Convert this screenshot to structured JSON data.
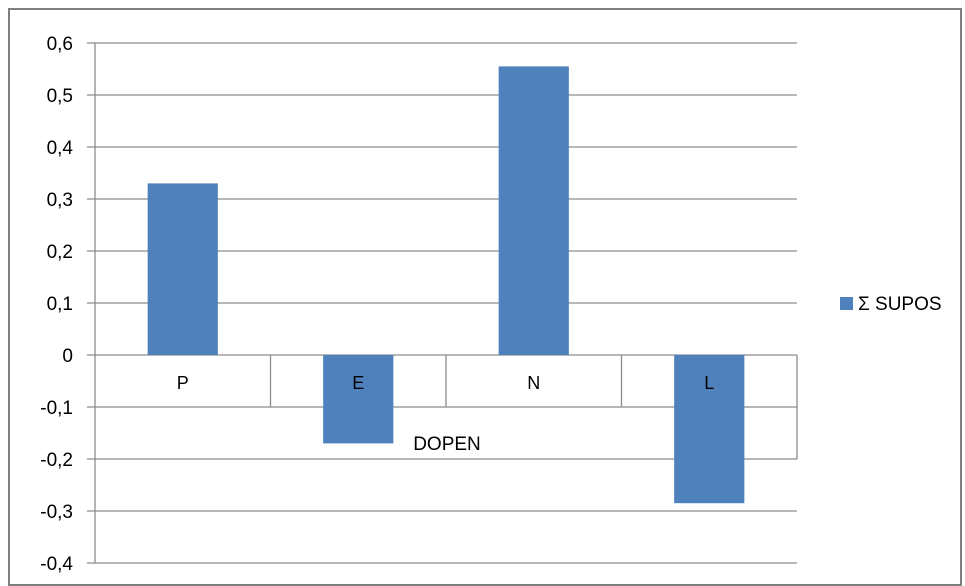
{
  "chart_data": {
    "type": "bar",
    "categories": [
      "P",
      "E",
      "N",
      "L"
    ],
    "series": [
      {
        "name": "Σ SUPOS",
        "values": [
          0.33,
          -0.17,
          0.555,
          -0.285
        ]
      }
    ],
    "xlabel": "DOPEN",
    "ylabel": "",
    "ylim": [
      -0.4,
      0.6
    ],
    "yticks": [
      0.6,
      0.5,
      0.4,
      0.3,
      0.2,
      0.1,
      0,
      -0.1,
      -0.2,
      -0.3,
      -0.4
    ],
    "ytick_labels": [
      "0,6",
      "0,5",
      "0,4",
      "0,3",
      "0,2",
      "0,1",
      "0",
      "-0,1",
      "-0,2",
      "-0,3",
      "-0,4"
    ],
    "grid": true,
    "legend": "right",
    "colors": {
      "bar": "#4f81bd",
      "grid": "#8c8c8c",
      "frame": "#7f7f7f"
    }
  }
}
